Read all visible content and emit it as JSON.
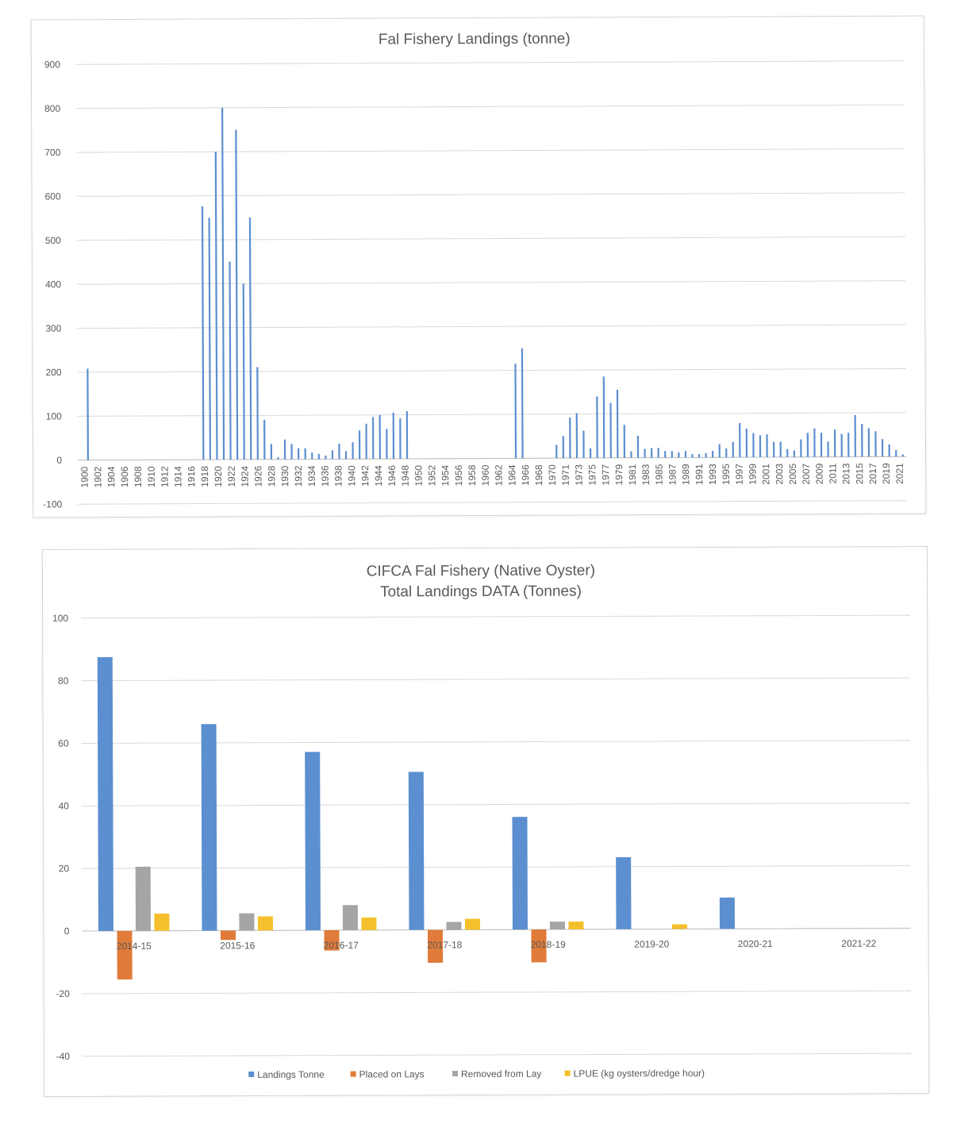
{
  "chart_data": [
    {
      "type": "bar",
      "title": "Fal Fishery Landings (tonne)",
      "xlabel": "",
      "ylabel": "",
      "ylim": [
        -100,
        900
      ],
      "yticks": [
        -100,
        0,
        100,
        200,
        300,
        400,
        500,
        600,
        700,
        800,
        900
      ],
      "grid": true,
      "legend": "none",
      "color": "#5b8fd0",
      "x_start": 1900,
      "x_end": 2021,
      "tick_labels": [
        "1900",
        "1902",
        "1904",
        "1906",
        "1908",
        "1910",
        "1912",
        "1914",
        "1916",
        "1918",
        "1920",
        "1922",
        "1924",
        "1926",
        "1928",
        "1930",
        "1932",
        "1934",
        "1936",
        "1938",
        "1940",
        "1942",
        "1944",
        "1946",
        "1948",
        "1950",
        "1952",
        "1954",
        "1956",
        "1958",
        "1960",
        "1962",
        "1964",
        "1966",
        "1968",
        "1970",
        "1971",
        "1973",
        "1975",
        "1977",
        "1979",
        "1981",
        "1983",
        "1985",
        "1987",
        "1989",
        "1991",
        "1993",
        "1995",
        "1997",
        "1999",
        "2001",
        "2003",
        "2005",
        "2007",
        "2009",
        "2011",
        "2013",
        "2015",
        "2017",
        "2019",
        "2021"
      ],
      "x": [
        1901,
        1918,
        1919,
        1920,
        1921,
        1922,
        1923,
        1924,
        1925,
        1926,
        1927,
        1928,
        1929,
        1930,
        1931,
        1932,
        1933,
        1934,
        1935,
        1936,
        1937,
        1938,
        1939,
        1940,
        1941,
        1942,
        1943,
        1944,
        1945,
        1946,
        1947,
        1948,
        1964,
        1965,
        1970,
        1971,
        1972,
        1973,
        1974,
        1975,
        1976,
        1977,
        1978,
        1979,
        1980,
        1981,
        1982,
        1983,
        1984,
        1985,
        1986,
        1987,
        1988,
        1989,
        1990,
        1991,
        1992,
        1993,
        1994,
        1995,
        1996,
        1997,
        1998,
        1999,
        2000,
        2001,
        2002,
        2003,
        2004,
        2005,
        2006,
        2007,
        2008,
        2009,
        2010,
        2011,
        2012,
        2013,
        2014,
        2015,
        2016,
        2017,
        2018,
        2019,
        2020,
        2021
      ],
      "values": [
        208,
        576,
        550,
        700,
        800,
        450,
        750,
        400,
        550,
        210,
        90,
        35,
        5,
        45,
        35,
        25,
        25,
        15,
        12,
        8,
        20,
        35,
        18,
        38,
        65,
        80,
        95,
        100,
        68,
        105,
        92,
        108,
        215,
        250,
        30,
        50,
        92,
        102,
        62,
        22,
        140,
        185,
        125,
        155,
        75,
        15,
        50,
        20,
        22,
        22,
        15,
        15,
        12,
        15,
        8,
        8,
        10,
        15,
        30,
        20,
        35,
        78,
        65,
        55,
        50,
        52,
        35,
        35,
        18,
        15,
        40,
        55,
        65,
        55,
        35,
        62,
        52,
        55,
        95,
        75,
        65,
        58,
        40,
        28,
        15,
        5
      ]
    },
    {
      "type": "bar",
      "title": "CIFCA Fal Fishery (Native Oyster)",
      "subtitle": "Total Landings DATA (Tonnes)",
      "xlabel": "",
      "ylabel": "",
      "ylim": [
        -40,
        100
      ],
      "yticks": [
        -40,
        -20,
        0,
        20,
        40,
        60,
        80,
        100
      ],
      "grid": true,
      "legend": "bottom",
      "categories": [
        "2014-15",
        "2015-16",
        "2016-17",
        "2017-18",
        "2018-19",
        "2019-20",
        "2020-21",
        "2021-22"
      ],
      "series": [
        {
          "name": "Landings Tonne",
          "color": "#5b8fd0",
          "values": [
            87.5,
            66,
            57,
            50.5,
            36,
            23,
            10,
            0
          ]
        },
        {
          "name": "Placed on Lays",
          "color": "#e07b39",
          "values": [
            -15.5,
            -3,
            -6.5,
            -10.5,
            -10.5,
            0,
            0,
            0
          ]
        },
        {
          "name": "Removed from Lay",
          "color": "#a5a5a5",
          "values": [
            20.5,
            5.5,
            8,
            2.5,
            2.5,
            0,
            0,
            0
          ]
        },
        {
          "name": "LPUE (kg oysters/dredge hour)",
          "color": "#f5c02c",
          "values": [
            5.5,
            4.5,
            4,
            3.5,
            2.5,
            1.5,
            0,
            0
          ]
        }
      ]
    }
  ]
}
